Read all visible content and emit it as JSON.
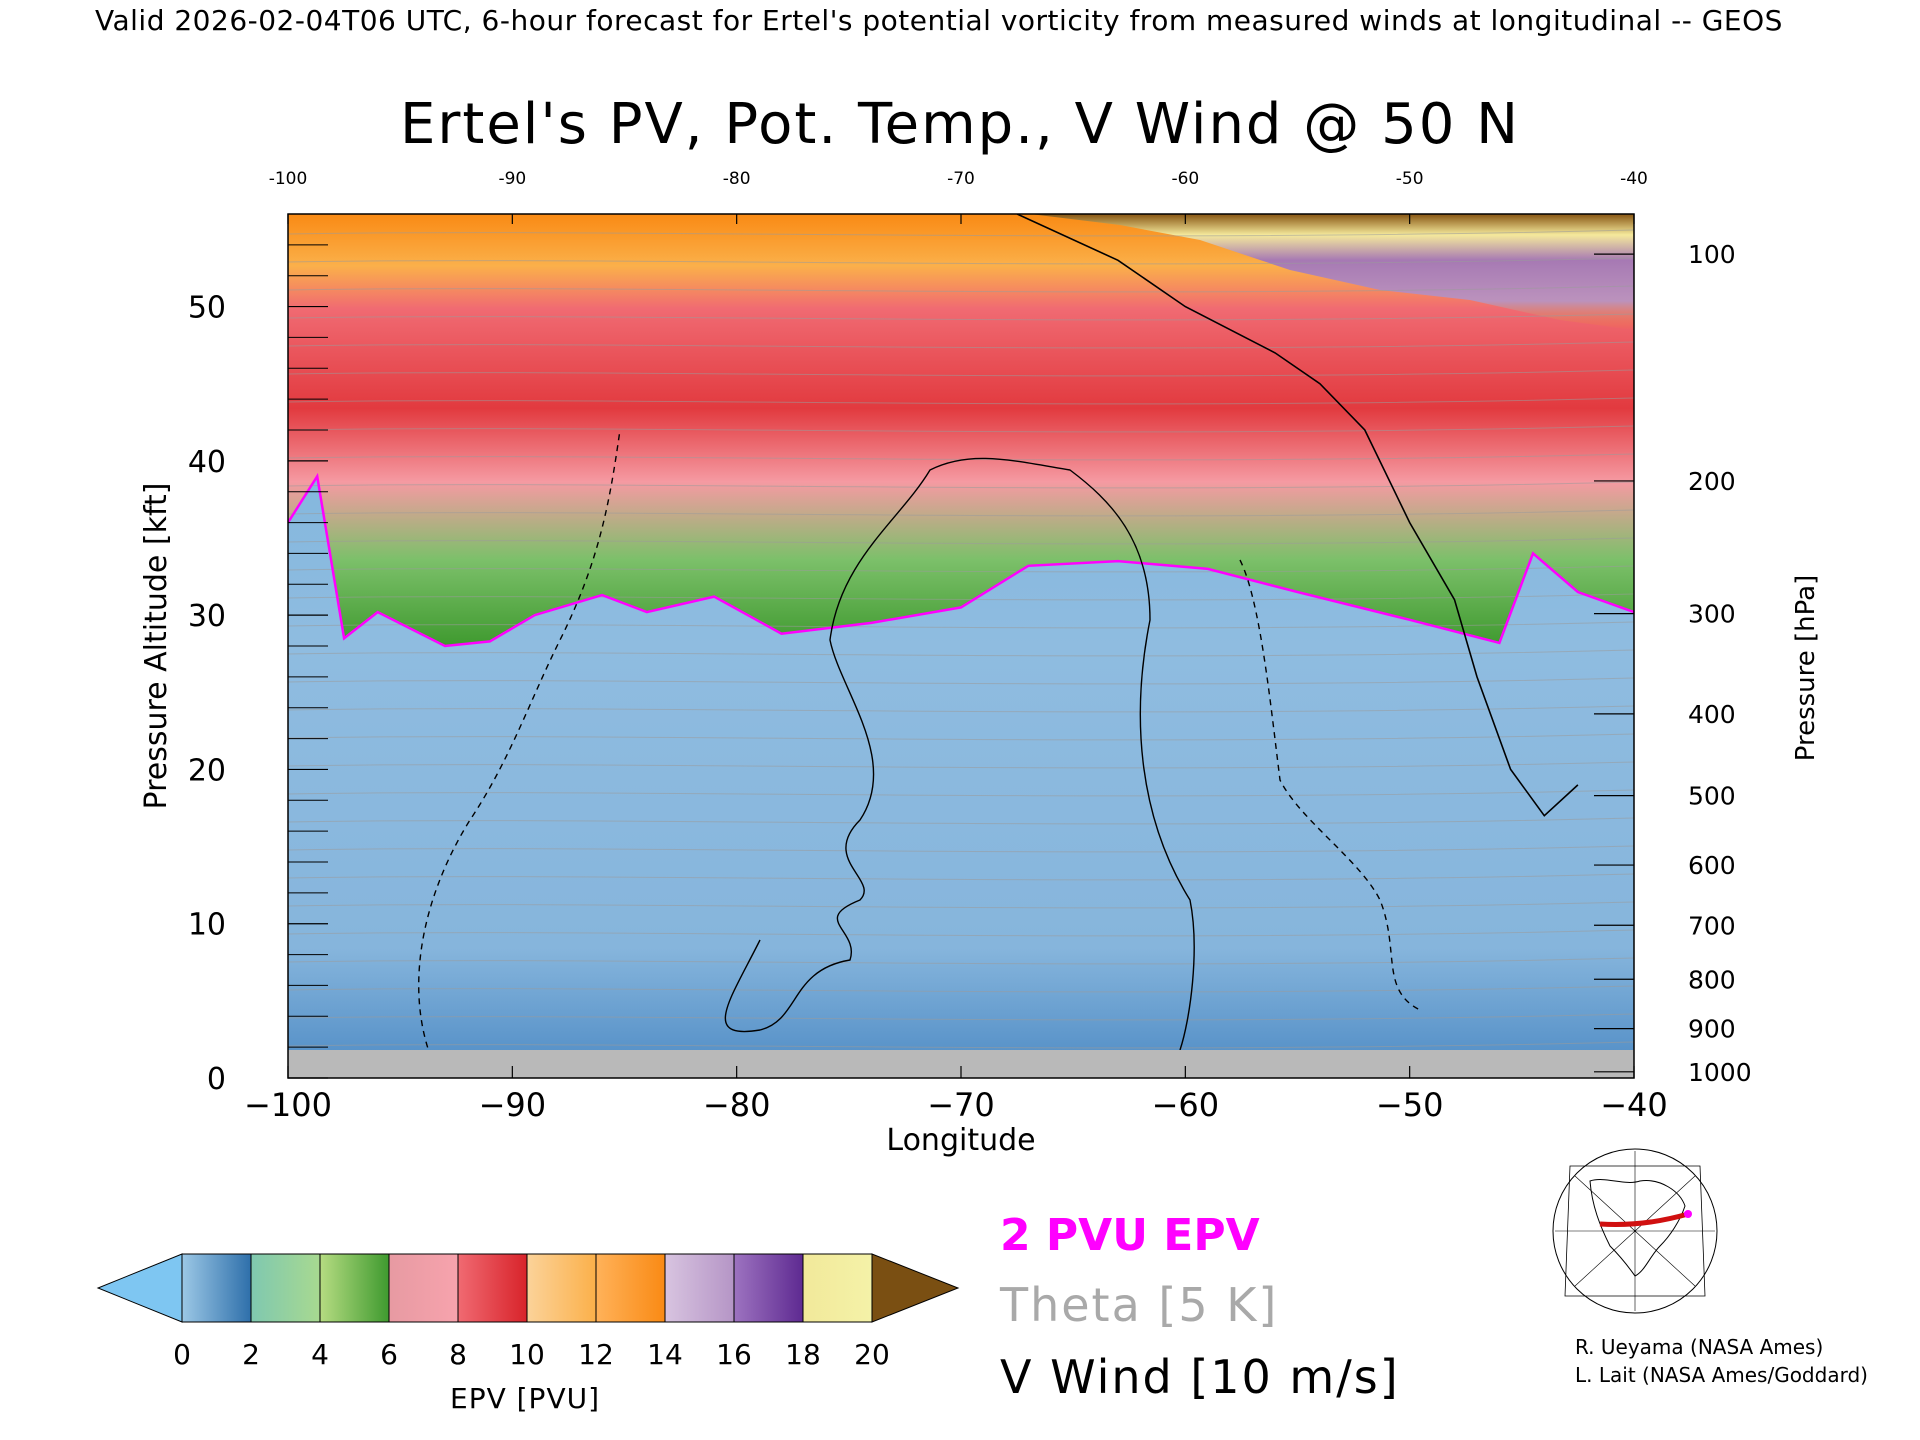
{
  "header": {
    "text": "Valid 2026-02-04T06 UTC, 6-hour forecast for Ertel's potential vorticity from measured winds at longitudinal -- GEOS"
  },
  "legend": {
    "epv": "2 PVU EPV",
    "theta": "Theta [5 K]",
    "wind": "V Wind [10 m/s]"
  },
  "credits": [
    "R. Ueyama (NASA Ames)",
    "L. Lait (NASA Ames/Goddard)"
  ],
  "colorbar": {
    "label": "EPV [PVU]",
    "ticks": [
      "0",
      "2",
      "4",
      "6",
      "8",
      "10",
      "12",
      "14",
      "16",
      "18",
      "20"
    ],
    "under_color": "#7ec6f2",
    "over_color": "#7a4f12",
    "segments": [
      [
        "#9cc8e6",
        "#2e6faa"
      ],
      [
        "#7fc8b0",
        "#a8d990"
      ],
      [
        "#b6dc82",
        "#3f9a2f"
      ],
      [
        "#e79aa2",
        "#f7a3ad"
      ],
      [
        "#f06a72",
        "#d8232a"
      ],
      [
        "#fbd39a",
        "#fbb04a"
      ],
      [
        "#ffb25a",
        "#f98a14"
      ],
      [
        "#d8c4e0",
        "#b595c6"
      ],
      [
        "#9d73c0",
        "#5e2a91"
      ],
      [
        "#f2e99a",
        "#f4f2a8"
      ]
    ]
  },
  "chart_data": {
    "type": "heatmap",
    "title": "Ertel's PV, Pot. Temp., V Wind @ 50 N",
    "xlabel": "Longitude",
    "ylabel": "Pressure Altitude [kft]",
    "y2label": "Pressure [hPa]",
    "xlim": [
      -100,
      -40
    ],
    "ylim": [
      0,
      56
    ],
    "x_ticks": [
      "-100",
      "-90",
      "-80",
      "-70",
      "-60",
      "-50",
      "-40"
    ],
    "top_x_ticks": [
      "-100",
      "-90",
      "-80",
      "-70",
      "-60",
      "-50",
      "-40"
    ],
    "y_ticks": [
      "0",
      "10",
      "20",
      "30",
      "40",
      "50"
    ],
    "pressure_ticks": [
      {
        "label": "100",
        "kft": 53.4
      },
      {
        "label": "200",
        "kft": 38.7
      },
      {
        "label": "300",
        "kft": 30.1
      },
      {
        "label": "400",
        "kft": 23.6
      },
      {
        "label": "500",
        "kft": 18.3
      },
      {
        "label": "600",
        "kft": 13.8
      },
      {
        "label": "700",
        "kft": 9.9
      },
      {
        "label": "800",
        "kft": 6.4
      },
      {
        "label": "900",
        "kft": 3.2
      },
      {
        "label": "1000",
        "kft": 0.4
      }
    ],
    "epv_colors": {
      "troposphere": "#8fbce0",
      "two_pvu_contour": "#ff00ff",
      "surface_mask": "#b9b9b9",
      "theta_contours": "#9a9a9a",
      "wind_contours": "#000000"
    },
    "two_pvu_boundary": [
      {
        "lon": -100,
        "kft": 36
      },
      {
        "lon": -98.7,
        "kft": 39
      },
      {
        "lon": -97.5,
        "kft": 28.5
      },
      {
        "lon": -96,
        "kft": 30.2
      },
      {
        "lon": -93,
        "kft": 28
      },
      {
        "lon": -91,
        "kft": 28.3
      },
      {
        "lon": -89,
        "kft": 30
      },
      {
        "lon": -86,
        "kft": 31.3
      },
      {
        "lon": -84,
        "kft": 30.2
      },
      {
        "lon": -81,
        "kft": 31.2
      },
      {
        "lon": -78,
        "kft": 28.8
      },
      {
        "lon": -74,
        "kft": 29.5
      },
      {
        "lon": -70,
        "kft": 30.5
      },
      {
        "lon": -67,
        "kft": 33.2
      },
      {
        "lon": -63,
        "kft": 33.5
      },
      {
        "lon": -59,
        "kft": 33
      },
      {
        "lon": -55,
        "kft": 31.5
      },
      {
        "lon": -50,
        "kft": 29.7
      },
      {
        "lon": -46,
        "kft": 28.2
      },
      {
        "lon": -44.5,
        "kft": 34
      },
      {
        "lon": -42.5,
        "kft": 31.5
      },
      {
        "lon": -40,
        "kft": 30.2
      }
    ],
    "wind_zero_contour": [
      {
        "lon": -67.5,
        "kft": 56
      },
      {
        "lon": -63,
        "kft": 53
      },
      {
        "lon": -60,
        "kft": 50
      },
      {
        "lon": -56,
        "kft": 47
      },
      {
        "lon": -54,
        "kft": 45
      },
      {
        "lon": -52,
        "kft": 42
      },
      {
        "lon": -50,
        "kft": 36
      },
      {
        "lon": -48,
        "kft": 31
      },
      {
        "lon": -47,
        "kft": 26
      },
      {
        "lon": -45.5,
        "kft": 20
      },
      {
        "lon": -44,
        "kft": 17
      },
      {
        "lon": -42.5,
        "kft": 19
      }
    ]
  }
}
